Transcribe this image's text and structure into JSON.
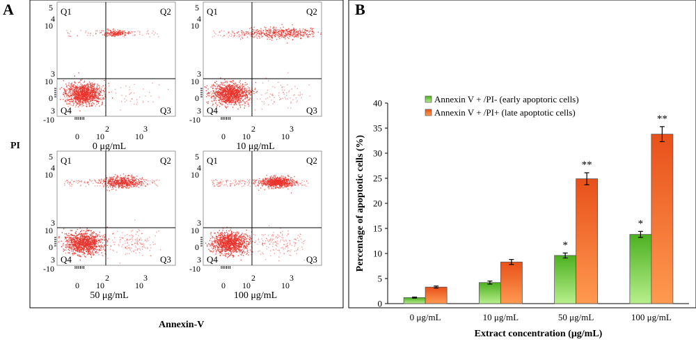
{
  "panels": {
    "a_letter": "A",
    "b_letter": "B"
  },
  "flow": {
    "y_title": "PI",
    "x_title": "Annexin-V",
    "quadrant_labels": [
      "Q1",
      "Q2",
      "Q3",
      "Q4"
    ],
    "y_ticks": {
      "top": "5",
      "upper_exp": "4",
      "upper_base": "10",
      "mid_exp": "3",
      "mid_base": "10",
      "zero": "0",
      "low_exp": "3",
      "bottom": "-10"
    },
    "x_ticks": {
      "zero": "0",
      "mid_exp": "2",
      "mid_base": "10",
      "high_base": "10",
      "high_exp": "3"
    },
    "plots": [
      {
        "caption": "0 μg/mL"
      },
      {
        "caption": "10 μg/mL"
      },
      {
        "caption": "50 μg/mL"
      },
      {
        "caption": "100 μg/mL"
      }
    ]
  },
  "chart_data": {
    "type": "bar",
    "categories": [
      "0 μg/mL",
      "10 μg/mL",
      "50 μg/mL",
      "100 μg/mL"
    ],
    "series": [
      {
        "name": "Annexin V + /PI- (early apoptoric cells)",
        "values": [
          1.2,
          4.2,
          9.6,
          13.8
        ],
        "errors": [
          0.1,
          0.3,
          0.5,
          0.6
        ],
        "significance": [
          "",
          "",
          "*",
          "*"
        ],
        "color": "#5ac52e"
      },
      {
        "name": "Annexin V + /PI+ (late apoptotic cells)",
        "values": [
          3.3,
          8.3,
          24.9,
          33.8
        ],
        "errors": [
          0.2,
          0.5,
          1.2,
          1.5
        ],
        "significance": [
          "",
          "",
          "**",
          "**"
        ],
        "color": "#f0641e"
      }
    ],
    "xlabel": "Extract concentration (μg/mL)",
    "ylabel": "Percentage of apoptotic cells (%)",
    "ylim": [
      0,
      40
    ],
    "yticks": [
      0,
      5,
      10,
      15,
      20,
      25,
      30,
      35,
      40
    ],
    "grid": false,
    "legend": "top-left"
  }
}
